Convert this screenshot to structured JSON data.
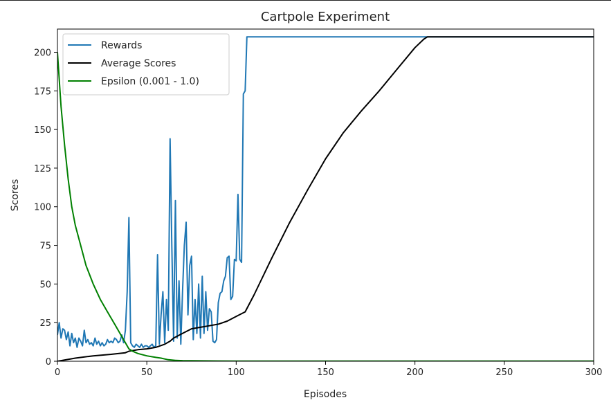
{
  "chart_data": {
    "type": "line",
    "title": "Cartpole Experiment",
    "xlabel": "Episodes",
    "ylabel": "Scores",
    "xlim": [
      0,
      300
    ],
    "ylim": [
      0,
      215
    ],
    "xticks": [
      0,
      50,
      100,
      150,
      200,
      250,
      300
    ],
    "yticks": [
      0,
      25,
      50,
      75,
      100,
      125,
      150,
      175,
      200
    ],
    "grid": false,
    "legend_position": "top-left",
    "series": [
      {
        "name": "Rewards",
        "color": "#1f77b4",
        "x": [
          0,
          1,
          2,
          3,
          4,
          5,
          6,
          7,
          8,
          9,
          10,
          11,
          12,
          13,
          14,
          15,
          16,
          17,
          18,
          19,
          20,
          21,
          22,
          23,
          24,
          25,
          26,
          27,
          28,
          29,
          30,
          31,
          32,
          33,
          34,
          35,
          36,
          37,
          38,
          39,
          40,
          41,
          42,
          43,
          44,
          45,
          46,
          47,
          48,
          49,
          50,
          51,
          52,
          53,
          54,
          55,
          56,
          57,
          58,
          59,
          60,
          61,
          62,
          63,
          64,
          65,
          66,
          67,
          68,
          69,
          70,
          71,
          72,
          73,
          74,
          75,
          76,
          77,
          78,
          79,
          80,
          81,
          82,
          83,
          84,
          85,
          86,
          87,
          88,
          89,
          90,
          91,
          92,
          93,
          94,
          95,
          96,
          97,
          98,
          99,
          100,
          101,
          102,
          103,
          104,
          105,
          106,
          107,
          108,
          109,
          110,
          300
        ],
        "y": [
          17,
          25,
          15,
          21,
          20,
          14,
          19,
          10,
          18,
          12,
          15,
          9,
          15,
          13,
          10,
          20,
          12,
          14,
          11,
          12,
          10,
          15,
          11,
          13,
          10,
          12,
          10,
          11,
          14,
          12,
          13,
          12,
          15,
          14,
          12,
          13,
          17,
          12,
          20,
          45,
          93,
          12,
          10,
          9,
          11,
          10,
          9,
          11,
          9,
          10,
          10,
          9,
          10,
          11,
          9,
          10,
          69,
          11,
          30,
          45,
          12,
          40,
          20,
          144,
          75,
          13,
          104,
          15,
          52,
          11,
          45,
          75,
          90,
          30,
          62,
          68,
          14,
          40,
          18,
          50,
          15,
          55,
          18,
          45,
          20,
          34,
          32,
          13,
          12,
          14,
          38,
          44,
          45,
          52,
          55,
          67,
          68,
          40,
          42,
          66,
          65,
          108,
          66,
          64,
          173,
          175,
          210,
          210,
          210,
          210,
          210,
          210
        ]
      },
      {
        "name": "Average Scores",
        "color": "#000000",
        "x": [
          0,
          10,
          20,
          30,
          38,
          40,
          45,
          50,
          55,
          60,
          63,
          65,
          70,
          75,
          80,
          85,
          90,
          95,
          100,
          105,
          110,
          120,
          130,
          140,
          150,
          160,
          170,
          180,
          190,
          200,
          205,
          207,
          300
        ],
        "y": [
          0,
          2,
          3.5,
          4.5,
          5.5,
          6.5,
          7.5,
          8,
          9,
          11,
          13,
          15,
          18,
          21,
          22,
          23,
          24,
          26,
          29,
          32,
          43,
          67,
          90,
          111,
          131,
          148,
          162,
          175,
          189,
          203,
          208.5,
          210,
          210
        ]
      },
      {
        "name": "Epsilon (0.001 - 1.0)",
        "color": "#008000",
        "x": [
          0,
          2,
          4,
          6,
          8,
          10,
          13,
          16,
          20,
          24,
          28,
          32,
          36,
          40,
          42,
          45,
          50,
          55,
          58,
          60,
          62,
          64,
          66,
          70,
          80,
          90,
          100,
          110,
          120,
          150,
          200,
          250,
          300
        ],
        "y": [
          200,
          165,
          140,
          118,
          100,
          88,
          75,
          62,
          50,
          40,
          32,
          24,
          16,
          8,
          6.5,
          5,
          3.5,
          2.5,
          2,
          1.5,
          1,
          0.8,
          0.6,
          0.4,
          0.25,
          0.2,
          0.15,
          0.1,
          0.1,
          0.1,
          0.1,
          0.1,
          0.1
        ]
      }
    ]
  }
}
